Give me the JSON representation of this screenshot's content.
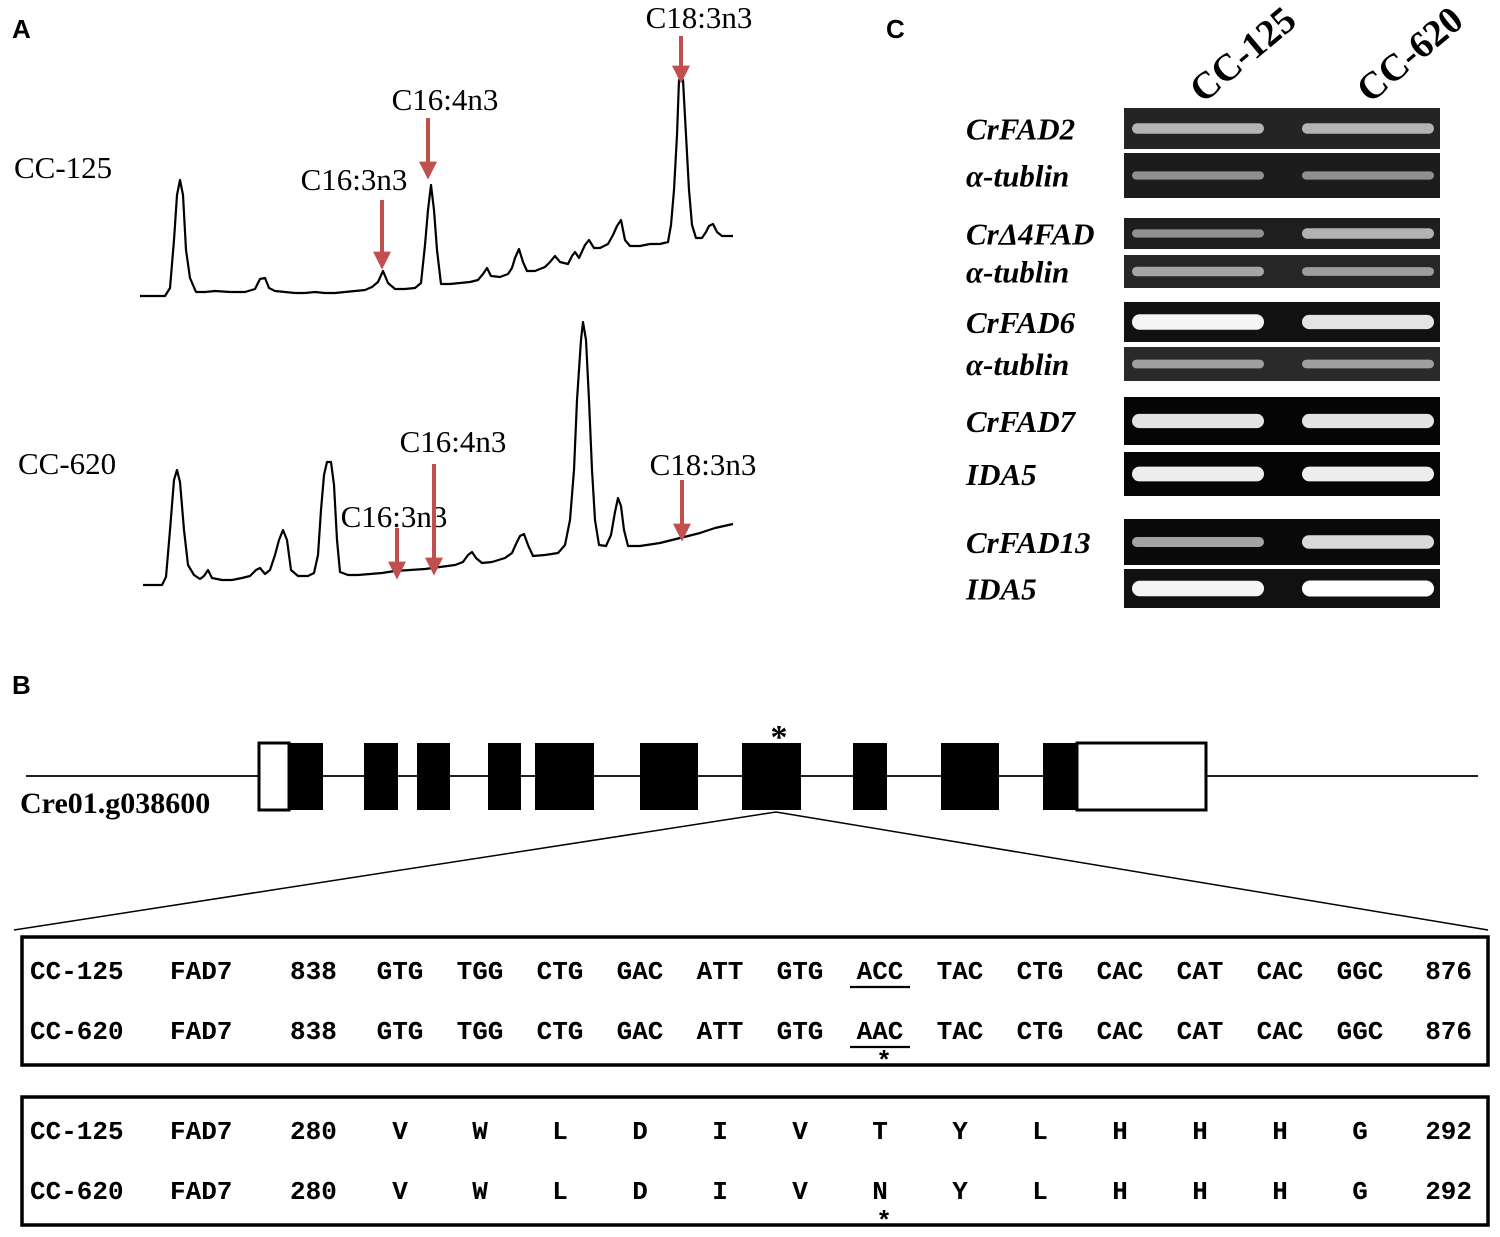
{
  "panels": {
    "a": {
      "letter": "A",
      "samples": [
        {
          "name": "CC-125",
          "peaks": [
            {
              "label": "C16:3n3",
              "rt": 10.0
            },
            {
              "label": "C16:4n3",
              "rt": 11.0
            },
            {
              "label": "C18:3n3",
              "rt": 16.5
            }
          ]
        },
        {
          "name": "CC-620",
          "peaks": [
            {
              "label": "C16:3n3",
              "rt": 10.5
            },
            {
              "label": "C16:4n3",
              "rt": 11.3
            },
            {
              "label": "C18:3n3",
              "rt": 16.8
            }
          ]
        }
      ]
    },
    "b": {
      "letter": "B",
      "gene_id": "Cre01.g038600",
      "exon_count": 10,
      "mutation_exon": 7,
      "mutation_marker": "*",
      "dna": {
        "start": "838",
        "end": "876",
        "rows": [
          {
            "sample": "CC-125",
            "gene": "FAD7",
            "codons": [
              "GTG",
              "TGG",
              "CTG",
              "GAC",
              "ATT",
              "GTG",
              "ACC",
              "TAC",
              "CTG",
              "CAC",
              "CAT",
              "CAC",
              "GGC"
            ]
          },
          {
            "sample": "CC-620",
            "gene": "FAD7",
            "codons": [
              "GTG",
              "TGG",
              "CTG",
              "GAC",
              "ATT",
              "GTG",
              "AAC",
              "TAC",
              "CTG",
              "CAC",
              "CAT",
              "CAC",
              "GGC"
            ]
          }
        ]
      },
      "protein": {
        "start": "280",
        "end": "292",
        "rows": [
          {
            "sample": "CC-125",
            "gene": "FAD7",
            "residues": [
              "V",
              "W",
              "L",
              "D",
              "I",
              "V",
              "T",
              "Y",
              "L",
              "H",
              "H",
              "H",
              "G"
            ]
          },
          {
            "sample": "CC-620",
            "gene": "FAD7",
            "residues": [
              "V",
              "W",
              "L",
              "D",
              "I",
              "V",
              "N",
              "Y",
              "L",
              "H",
              "H",
              "H",
              "G"
            ]
          }
        ]
      }
    },
    "c": {
      "letter": "C",
      "lanes": [
        "CC-125",
        "CC-620"
      ],
      "genes": [
        {
          "name": "CrFAD2",
          "intensities": [
            0.55,
            0.55
          ],
          "background": "#242424"
        },
        {
          "name": "α-tublin",
          "intensities": [
            0.35,
            0.35
          ],
          "background": "#1c1c1c"
        },
        {
          "name": "CrΔ4FAD",
          "intensities": [
            0.35,
            0.55
          ],
          "background": "#1e1e1e"
        },
        {
          "name": "α-tublin",
          "intensities": [
            0.45,
            0.4
          ],
          "background": "#262626"
        },
        {
          "name": "CrFAD6",
          "intensities": [
            0.95,
            0.85
          ],
          "background": "#111111"
        },
        {
          "name": "α-tublin",
          "intensities": [
            0.4,
            0.4
          ],
          "background": "#2a2a2a"
        },
        {
          "name": "CrFAD7",
          "intensities": [
            0.85,
            0.85
          ],
          "background": "#050505"
        },
        {
          "name": "IDA5",
          "intensities": [
            0.9,
            0.9
          ],
          "background": "#050505"
        },
        {
          "name": "CrFAD13",
          "intensities": [
            0.5,
            0.8
          ],
          "background": "#0a0a0a"
        },
        {
          "name": "IDA5",
          "intensities": [
            0.95,
            1.0
          ],
          "background": "#111111"
        }
      ]
    }
  },
  "colors": {
    "arrow": "#c0504d",
    "trace": "#000000",
    "band": "#ffffff"
  }
}
